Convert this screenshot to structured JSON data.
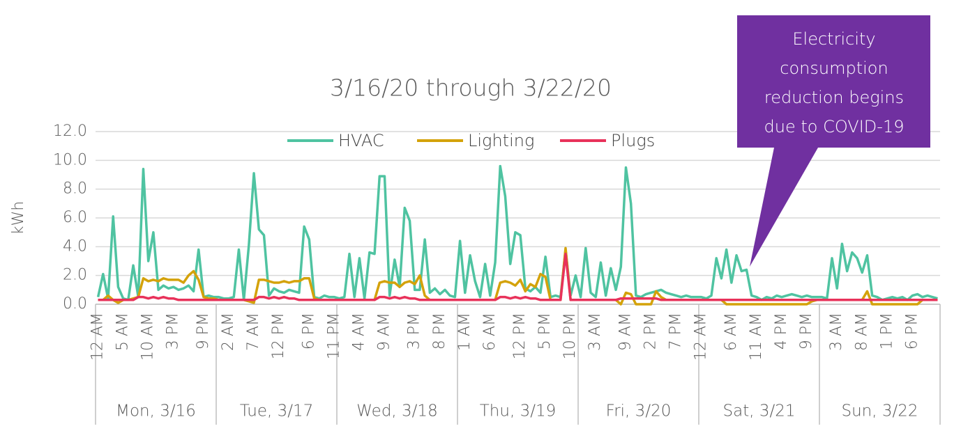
{
  "chart_data": {
    "type": "line",
    "title": "3/16/20 through 3/22/20",
    "y_label": "kWh",
    "annotation": {
      "lines": [
        "Electricity",
        "consumption",
        "reduction begins",
        "due to COVID-19"
      ],
      "color": "#7030a0"
    },
    "day_labels": [
      "Mon, 3/16",
      "Tue, 3/17",
      "Wed, 3/18",
      "Thu, 3/19",
      "Fri, 3/20",
      "Sat, 3/21",
      "Sun, 3/22"
    ],
    "categories": [
      "12 AM",
      null,
      null,
      null,
      null,
      "5 AM",
      null,
      null,
      null,
      null,
      "10 AM",
      null,
      null,
      null,
      null,
      "3 PM",
      null,
      null,
      null,
      null,
      null,
      "9 PM",
      null,
      null,
      null,
      null,
      "2 AM",
      null,
      null,
      null,
      null,
      "7 AM",
      null,
      null,
      null,
      null,
      "12 PM",
      null,
      null,
      null,
      null,
      null,
      "6 PM",
      null,
      null,
      null,
      null,
      "11 PM",
      null,
      null,
      null,
      null,
      "4 AM",
      null,
      null,
      null,
      null,
      "9 AM",
      null,
      null,
      null,
      null,
      null,
      "3 PM",
      null,
      null,
      null,
      null,
      "8 PM",
      null,
      null,
      null,
      null,
      "1 AM",
      null,
      null,
      null,
      null,
      "6 AM",
      null,
      null,
      null,
      null,
      null,
      "12 PM",
      null,
      null,
      null,
      null,
      "5 PM",
      null,
      null,
      null,
      null,
      "10 PM",
      null,
      null,
      null,
      null,
      "3 AM",
      null,
      null,
      null,
      null,
      null,
      "9 AM",
      null,
      null,
      null,
      null,
      "2 PM",
      null,
      null,
      null,
      null,
      "7 PM",
      null,
      null,
      null,
      null,
      "12 AM",
      null,
      null,
      null,
      null,
      null,
      "6 AM",
      null,
      null,
      null,
      null,
      "11 AM",
      null,
      null,
      null,
      null,
      "4 PM",
      null,
      null,
      null,
      null,
      "9 PM",
      null,
      null,
      null,
      null,
      null,
      "3 AM",
      null,
      null,
      null,
      null,
      "8 AM",
      null,
      null,
      null,
      null,
      "1 PM",
      null,
      null,
      null,
      null,
      "6 PM",
      null,
      null,
      null,
      null,
      null
    ],
    "series": [
      {
        "name": "HVAC",
        "color": "#4fc3a1",
        "values": [
          0.5,
          2.1,
          0.4,
          6.1,
          1.2,
          0.4,
          0.3,
          2.7,
          0.5,
          9.4,
          3.0,
          5.0,
          1.0,
          1.3,
          1.1,
          1.2,
          1.0,
          1.1,
          1.3,
          0.9,
          3.8,
          0.5,
          0.6,
          0.5,
          0.5,
          0.4,
          0.4,
          0.5,
          3.8,
          0.3,
          4.1,
          9.1,
          5.2,
          4.8,
          0.6,
          1.1,
          0.9,
          0.8,
          1.0,
          0.9,
          0.8,
          5.4,
          4.5,
          0.5,
          0.4,
          0.6,
          0.5,
          0.5,
          0.4,
          0.5,
          3.5,
          0.5,
          3.2,
          0.4,
          3.6,
          3.5,
          8.9,
          8.9,
          0.6,
          3.1,
          1.2,
          6.7,
          5.8,
          1.0,
          1.0,
          4.5,
          0.8,
          1.1,
          0.7,
          1.0,
          0.6,
          0.5,
          4.4,
          0.8,
          3.4,
          1.6,
          0.5,
          2.8,
          0.6,
          2.9,
          9.6,
          7.5,
          2.8,
          5.0,
          4.8,
          1.1,
          0.9,
          1.2,
          0.8,
          3.3,
          0.5,
          0.6,
          0.5,
          3.8,
          0.6,
          2.0,
          0.5,
          3.9,
          0.8,
          0.5,
          2.9,
          0.6,
          2.5,
          1.0,
          2.6,
          9.5,
          7.0,
          0.6,
          0.5,
          0.7,
          0.8,
          0.9,
          1.0,
          0.8,
          0.7,
          0.6,
          0.5,
          0.6,
          0.5,
          0.5,
          0.5,
          0.4,
          0.6,
          3.2,
          1.8,
          3.8,
          1.5,
          3.4,
          2.3,
          2.4,
          0.6,
          0.5,
          0.3,
          0.5,
          0.4,
          0.6,
          0.5,
          0.6,
          0.7,
          0.6,
          0.5,
          0.6,
          0.5,
          0.5,
          0.5,
          0.4,
          3.2,
          1.1,
          4.2,
          2.3,
          3.6,
          3.2,
          2.2,
          3.4,
          0.6,
          0.5,
          0.3,
          0.4,
          0.5,
          0.4,
          0.5,
          0.3,
          0.6,
          0.7,
          0.5,
          0.6,
          0.5,
          0.4
        ]
      },
      {
        "name": "Lighting",
        "color": "#d4a20a",
        "values": [
          0.3,
          0.3,
          0.6,
          0.3,
          0.1,
          0.3,
          0.3,
          0.4,
          0.5,
          1.8,
          1.6,
          1.7,
          1.6,
          1.8,
          1.7,
          1.7,
          1.7,
          1.5,
          2.0,
          2.3,
          1.7,
          0.5,
          0.4,
          0.4,
          0.3,
          0.3,
          0.3,
          0.3,
          0.3,
          0.3,
          0.2,
          0.1,
          1.7,
          1.7,
          1.6,
          1.5,
          1.5,
          1.6,
          1.5,
          1.6,
          1.6,
          1.8,
          1.8,
          0.4,
          0.3,
          0.3,
          0.3,
          0.3,
          0.3,
          0.3,
          0.3,
          0.3,
          0.3,
          0.3,
          0.3,
          0.3,
          1.5,
          1.6,
          1.5,
          1.5,
          1.2,
          1.5,
          1.6,
          1.4,
          2.0,
          0.6,
          0.3,
          0.3,
          0.3,
          0.3,
          0.3,
          0.3,
          0.3,
          0.3,
          0.3,
          0.3,
          0.3,
          0.3,
          0.3,
          0.3,
          1.5,
          1.6,
          1.5,
          1.3,
          1.7,
          0.9,
          1.4,
          1.2,
          2.1,
          1.9,
          0.3,
          0.3,
          0.3,
          3.9,
          0.3,
          0.3,
          0.3,
          0.3,
          0.3,
          0.3,
          0.3,
          0.3,
          0.3,
          0.3,
          0.0,
          0.8,
          0.7,
          0.0,
          0.0,
          0.0,
          0.0,
          0.9,
          0.5,
          0.3,
          0.3,
          0.3,
          0.3,
          0.3,
          0.3,
          0.3,
          0.3,
          0.3,
          0.3,
          0.3,
          0.3,
          0.0,
          0.0,
          0.0,
          0.0,
          0.0,
          0.0,
          0.0,
          0.0,
          0.0,
          0.0,
          0.0,
          0.0,
          0.0,
          0.0,
          0.0,
          0.0,
          0.0,
          0.2,
          0.3,
          0.3,
          0.3,
          0.3,
          0.3,
          0.3,
          0.3,
          0.3,
          0.3,
          0.3,
          0.9,
          0.0,
          0.0,
          0.0,
          0.0,
          0.0,
          0.0,
          0.0,
          0.0,
          0.0,
          0.0,
          0.3,
          0.3,
          0.3,
          0.3
        ]
      },
      {
        "name": "Plugs",
        "color": "#e8325a",
        "values": [
          0.3,
          0.3,
          0.3,
          0.3,
          0.3,
          0.3,
          0.3,
          0.3,
          0.5,
          0.5,
          0.4,
          0.5,
          0.4,
          0.5,
          0.4,
          0.4,
          0.3,
          0.3,
          0.3,
          0.3,
          0.3,
          0.3,
          0.3,
          0.3,
          0.3,
          0.3,
          0.3,
          0.3,
          0.3,
          0.3,
          0.3,
          0.3,
          0.5,
          0.5,
          0.4,
          0.5,
          0.4,
          0.5,
          0.4,
          0.4,
          0.3,
          0.3,
          0.3,
          0.3,
          0.3,
          0.3,
          0.3,
          0.3,
          0.3,
          0.3,
          0.3,
          0.3,
          0.3,
          0.3,
          0.3,
          0.3,
          0.5,
          0.5,
          0.4,
          0.5,
          0.4,
          0.5,
          0.4,
          0.4,
          0.3,
          0.3,
          0.3,
          0.3,
          0.3,
          0.3,
          0.3,
          0.3,
          0.3,
          0.3,
          0.3,
          0.3,
          0.3,
          0.3,
          0.3,
          0.3,
          0.5,
          0.5,
          0.4,
          0.5,
          0.4,
          0.5,
          0.4,
          0.4,
          0.3,
          0.3,
          0.3,
          0.3,
          0.3,
          3.5,
          0.3,
          0.3,
          0.3,
          0.3,
          0.3,
          0.3,
          0.3,
          0.3,
          0.3,
          0.3,
          0.4,
          0.4,
          0.4,
          0.4,
          0.4,
          0.4,
          0.4,
          0.4,
          0.3,
          0.3,
          0.3,
          0.3,
          0.3,
          0.3,
          0.3,
          0.3,
          0.3,
          0.3,
          0.3,
          0.3,
          0.3,
          0.3,
          0.3,
          0.3,
          0.3,
          0.3,
          0.3,
          0.3,
          0.3,
          0.3,
          0.3,
          0.3,
          0.3,
          0.3,
          0.3,
          0.3,
          0.3,
          0.3,
          0.3,
          0.3,
          0.3,
          0.3,
          0.3,
          0.3,
          0.3,
          0.3,
          0.3,
          0.3,
          0.3,
          0.3,
          0.3,
          0.3,
          0.3,
          0.3,
          0.3,
          0.3,
          0.3,
          0.3,
          0.3,
          0.3,
          0.3,
          0.3,
          0.3,
          0.3
        ]
      }
    ],
    "ylim": [
      0,
      12
    ],
    "yticks": [
      {
        "value": 0,
        "label": "0.0"
      },
      {
        "value": 2,
        "label": "2.0"
      },
      {
        "value": 4,
        "label": "4.0"
      },
      {
        "value": 6,
        "label": "6.0"
      },
      {
        "value": 8,
        "label": "8.0"
      },
      {
        "value": 10,
        "label": "10.0"
      },
      {
        "value": 12,
        "label": "12.0"
      }
    ],
    "grid": true
  }
}
